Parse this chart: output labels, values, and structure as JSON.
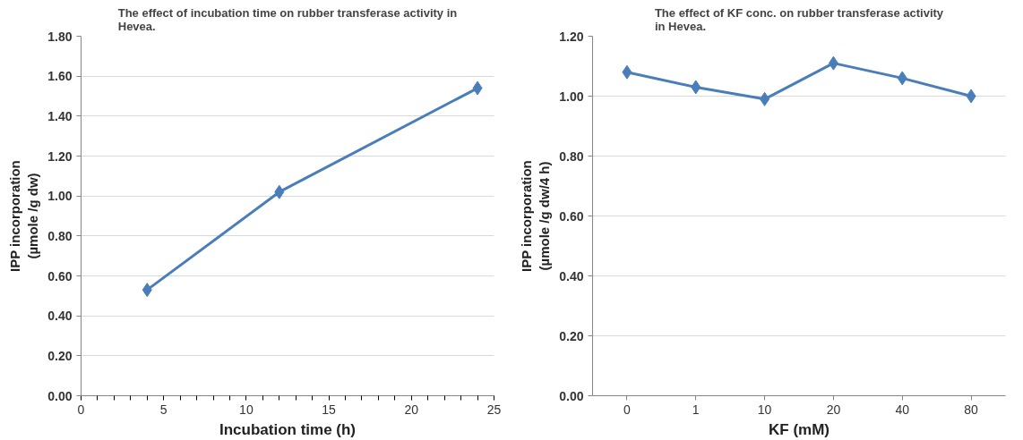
{
  "chart_data": [
    {
      "type": "line",
      "title": "The effect of incubation time on rubber transferase activity in\nHevea.",
      "xlabel": "Incubation time (h)",
      "ylabel": "IPP incorporation\n(µmole /g dw)",
      "x": [
        4,
        12,
        24
      ],
      "series": [
        {
          "color": "#4a7ebb",
          "values": [
            0.53,
            1.02,
            1.54
          ]
        }
      ],
      "xlim": [
        0,
        25
      ],
      "xticks": [
        0,
        5,
        10,
        15,
        20,
        25
      ],
      "ylim": [
        0,
        1.8
      ],
      "yticks": [
        {
          "value": 0,
          "label": "0.00"
        },
        {
          "value": 0.2,
          "label": "0.20"
        },
        {
          "value": 0.4,
          "label": "0.40"
        },
        {
          "value": 0.6,
          "label": "0.60"
        },
        {
          "value": 0.8,
          "label": "0.80"
        },
        {
          "value": 1.0,
          "label": "1.00"
        },
        {
          "value": 1.2,
          "label": "1.20"
        },
        {
          "value": 1.4,
          "label": "1.40"
        },
        {
          "value": 1.6,
          "label": "1.60"
        },
        {
          "value": 1.8,
          "label": "1.80"
        }
      ],
      "grid": "y",
      "marker": "diamond",
      "line_style": "solid"
    },
    {
      "type": "line",
      "title": "The effect of KF conc. on rubber transferase activity\nin Hevea.",
      "xlabel": "KF (mM)",
      "ylabel": "IPP incorporation\n(µmole /g dw/4 h)",
      "categories": [
        "0",
        "1",
        "10",
        "20",
        "40",
        "80"
      ],
      "series": [
        {
          "color": "#4a7ebb",
          "values": [
            1.08,
            1.03,
            0.99,
            1.11,
            1.06,
            1.0
          ]
        }
      ],
      "ylim": [
        0,
        1.2
      ],
      "yticks": [
        {
          "value": 0,
          "label": "0.00"
        },
        {
          "value": 0.2,
          "label": "0.20"
        },
        {
          "value": 0.4,
          "label": "0.40"
        },
        {
          "value": 0.6,
          "label": "0.60"
        },
        {
          "value": 0.8,
          "label": "0.80"
        },
        {
          "value": 1.0,
          "label": "1.00"
        },
        {
          "value": 1.2,
          "label": "1.20"
        }
      ],
      "grid": "y",
      "marker": "diamond",
      "line_style": "solid"
    }
  ]
}
